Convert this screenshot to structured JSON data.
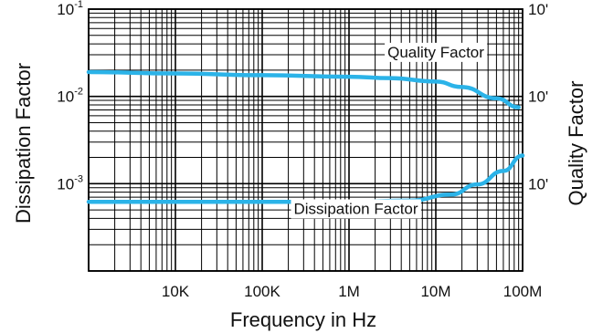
{
  "chart_data": {
    "type": "line",
    "title": "",
    "xlabel": "Frequency in Hz",
    "ylabel_left": "Dissipation Factor",
    "ylabel_right": "Quality Factor",
    "x_scale": "log",
    "y_scale": "log",
    "xlim": [
      1000,
      100000000
    ],
    "ylim": [
      0.0001,
      0.1
    ],
    "grid": true,
    "x_ticks": [
      {
        "value": 10000,
        "label": "10K"
      },
      {
        "value": 100000,
        "label": "100K"
      },
      {
        "value": 1000000,
        "label": "1M"
      },
      {
        "value": 10000000,
        "label": "10M"
      },
      {
        "value": 100000000,
        "label": "100M"
      }
    ],
    "y_ticks_left": [
      {
        "value": 0.1,
        "base": "10",
        "exp": "-1"
      },
      {
        "value": 0.01,
        "base": "10",
        "exp": "-2"
      },
      {
        "value": 0.001,
        "base": "10",
        "exp": "-3"
      }
    ],
    "y_ticks_right": [
      {
        "value": 0.1,
        "label": "10'"
      },
      {
        "value": 0.01,
        "label": "10'"
      },
      {
        "value": 0.001,
        "label": "10'"
      }
    ],
    "series": [
      {
        "name": "Quality Factor",
        "color": "#2bb3e8",
        "x": [
          1000,
          10000,
          100000,
          1000000,
          3000000,
          10000000,
          20000000,
          50000000,
          90000000
        ],
        "y": [
          0.019,
          0.0183,
          0.0175,
          0.0168,
          0.0162,
          0.0148,
          0.0128,
          0.0095,
          0.0075
        ]
      },
      {
        "name": "Dissipation Factor",
        "color": "#2bb3e8",
        "x": [
          1000,
          10000,
          100000,
          1000000,
          5000000,
          15000000,
          30000000,
          60000000,
          100000000
        ],
        "y": [
          0.00062,
          0.00062,
          0.00062,
          0.00062,
          0.00064,
          0.00075,
          0.00098,
          0.0014,
          0.0021
        ]
      }
    ],
    "annotations": [
      {
        "text": "Quality Factor",
        "x": 10000000,
        "y": 0.028
      },
      {
        "text": "Dissipation Factor",
        "x": 1200000,
        "y": 0.00045
      }
    ]
  }
}
